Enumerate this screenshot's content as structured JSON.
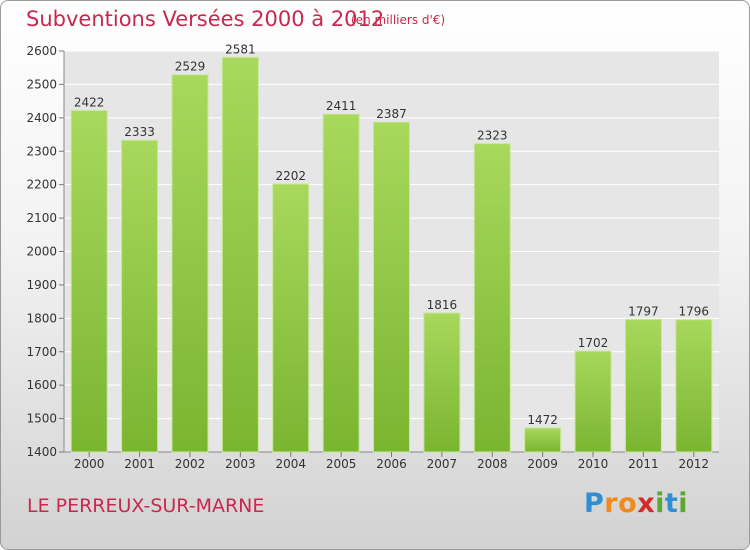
{
  "chart_data": {
    "type": "bar",
    "title": "Subventions Versées 2000 à 2012",
    "subtitle": "(en milliers d'€)",
    "categories": [
      "2000",
      "2001",
      "2002",
      "2003",
      "2004",
      "2005",
      "2006",
      "2007",
      "2008",
      "2009",
      "2010",
      "2011",
      "2012"
    ],
    "values": [
      2422,
      2333,
      2529,
      2581,
      2202,
      2411,
      2387,
      1816,
      2323,
      1472,
      1702,
      1797,
      1796
    ],
    "ylim": [
      1400,
      2600
    ],
    "yticks": [
      1400,
      1500,
      1600,
      1700,
      1800,
      1900,
      2000,
      2100,
      2200,
      2300,
      2400,
      2500,
      2600
    ],
    "grid": true,
    "bar_color": "#7ab530",
    "bar_color_light": "#a8d85c"
  },
  "footer": {
    "commune": "LE PERREUX-SUR-MARNE",
    "logo_letters": [
      {
        "ch": "P",
        "color": "#2f8fd4"
      },
      {
        "ch": "r",
        "color": "#f08a1c"
      },
      {
        "ch": "o",
        "color": "#f08a1c"
      },
      {
        "ch": "x",
        "color": "#d62a2a"
      },
      {
        "ch": "i",
        "color": "#5aa82d"
      },
      {
        "ch": "t",
        "color": "#2f8fd4"
      },
      {
        "ch": "i",
        "color": "#5aa82d"
      }
    ]
  }
}
